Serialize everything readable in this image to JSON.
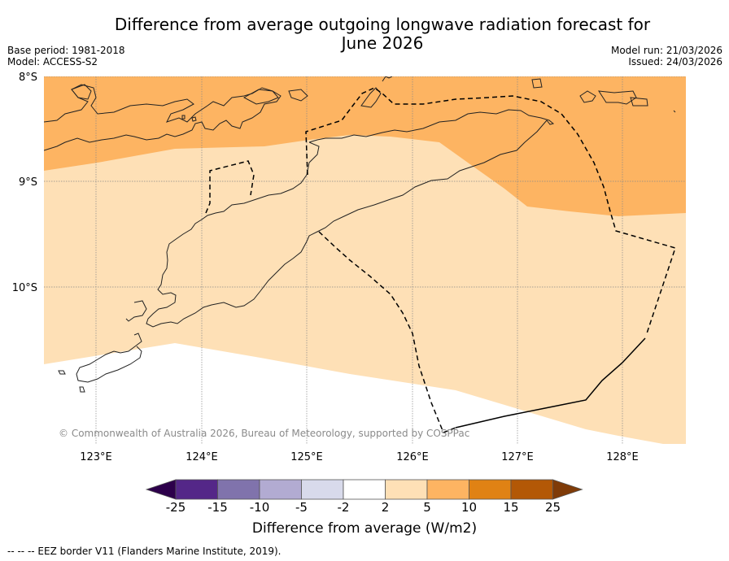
{
  "header": {
    "title_line1": "Difference from average outgoing longwave radiation forecast for",
    "title_line2": "June 2026",
    "base_period": "Base period: 1981-2018",
    "model": "Model: ACCESS-S2",
    "model_run": "Model run: 21/03/2026",
    "issued": "Issued: 24/03/2026"
  },
  "map": {
    "lat_labels": [
      "8°S",
      "9°S",
      "10°S"
    ],
    "lon_labels": [
      "123°E",
      "124°E",
      "125°E",
      "126°E",
      "127°E",
      "128°E"
    ],
    "extent": {
      "lon_min": 122.5,
      "lon_max": 128.6,
      "lat_min": -11.5,
      "lat_max": -8.0
    },
    "credit": "© Commonwealth of Australia 2026, Bureau of Meteorology, supported by COSPPac",
    "regions": [
      {
        "category": "5 to 10",
        "color": "#fdb462"
      },
      {
        "category": "2 to 5",
        "color": "#fee0b6"
      },
      {
        "category": "-2 to 2",
        "color": "#ffffff"
      }
    ]
  },
  "colorbar": {
    "label": "Difference from average (W/m2)",
    "ticks": [
      "-25",
      "-15",
      "-10",
      "-5",
      "-2",
      "2",
      "5",
      "10",
      "15",
      "25"
    ],
    "colors": [
      "#542788",
      "#8073ac",
      "#b2abd2",
      "#d8daeb",
      "#ffffff",
      "#fee0b6",
      "#fdb462",
      "#e08214",
      "#b35806"
    ],
    "extend_low_color": "#2d004b",
    "extend_high_color": "#7f3b08"
  },
  "footer": {
    "eez_note": "--  --  -- EEZ border V11 (Flanders Marine Institute, 2019)."
  }
}
